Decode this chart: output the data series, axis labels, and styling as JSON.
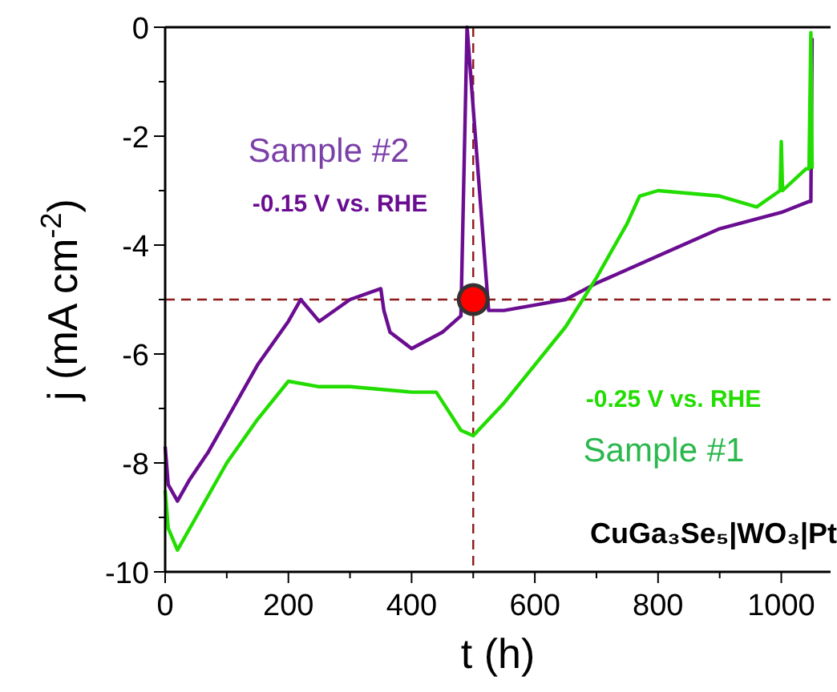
{
  "chart_data": {
    "type": "line",
    "xlabel": "t (h)",
    "ylabel": "j (mA cm$^{-2}$)",
    "xlim": [
      0,
      1080
    ],
    "ylim": [
      -10,
      0
    ],
    "xticks": [
      0,
      {
        "value": 100,
        "label": null
      },
      200,
      {
        "value": 300,
        "label": null
      },
      400,
      {
        "value": 500,
        "label": null
      },
      600,
      {
        "value": 700,
        "label": null
      },
      800,
      {
        "value": 900,
        "label": null
      },
      1000
    ],
    "yticks": [
      -10,
      {
        "value": -9,
        "label": null
      },
      -8,
      {
        "value": -7,
        "label": null
      },
      -6,
      {
        "value": -5,
        "label": null
      },
      -4,
      {
        "value": -3,
        "label": null
      },
      -2,
      {
        "value": -1,
        "label": null
      },
      0
    ],
    "grid": false,
    "marker": "none",
    "line_style": "solid",
    "series": [
      {
        "color": "#6a0d91",
        "x": [
          0,
          5,
          20,
          40,
          70,
          100,
          150,
          200,
          220,
          250,
          300,
          350,
          355,
          365,
          400,
          450,
          480,
          490,
          525,
          550,
          600,
          650,
          700,
          800,
          900,
          1000,
          1045,
          1048,
          1050
        ],
        "values": [
          -7.7,
          -8.4,
          -8.7,
          -8.3,
          -7.8,
          -7.2,
          -6.2,
          -5.4,
          -5.0,
          -5.4,
          -5.0,
          -4.8,
          -5.2,
          -5.6,
          -5.9,
          -5.6,
          -5.3,
          0,
          -5.2,
          -5.2,
          -5.1,
          -5.0,
          -4.7,
          -4.2,
          -3.7,
          -3.4,
          -3.2,
          -3.2,
          -0.2
        ]
      },
      {
        "color": "#22dd00",
        "x": [
          0,
          5,
          20,
          50,
          100,
          150,
          200,
          250,
          300,
          400,
          440,
          480,
          500,
          550,
          600,
          650,
          700,
          750,
          770,
          800,
          900,
          960,
          998,
          1000,
          1002,
          1040,
          1045,
          1048,
          1050
        ],
        "values": [
          -8.5,
          -9.2,
          -9.6,
          -9.0,
          -8.0,
          -7.2,
          -6.5,
          -6.6,
          -6.6,
          -6.7,
          -6.7,
          -7.4,
          -7.5,
          -6.9,
          -6.2,
          -5.5,
          -4.6,
          -3.6,
          -3.1,
          -3.0,
          -3.1,
          -3.3,
          -3.0,
          -2.1,
          -3.0,
          -2.6,
          -2.6,
          -0.1,
          -2.6
        ]
      },
      {
        "type": "scatter",
        "color": "#ff0000",
        "marker": "circle",
        "x": [
          500
        ],
        "values": [
          -5
        ]
      }
    ],
    "ref_lines": [
      {
        "axis": "y",
        "value": -5,
        "color": "#8b1a1a",
        "line_style": "dashed"
      },
      {
        "axis": "x",
        "value": 500,
        "color": "#8b1a1a",
        "line_style": "dashed"
      }
    ],
    "annotations": [
      "Sample #2",
      "-0.15 V vs. RHE",
      "-0.25 V vs. RHE",
      "Sample #1",
      "CuGa₃Se₅|WO₃|Pt"
    ]
  }
}
